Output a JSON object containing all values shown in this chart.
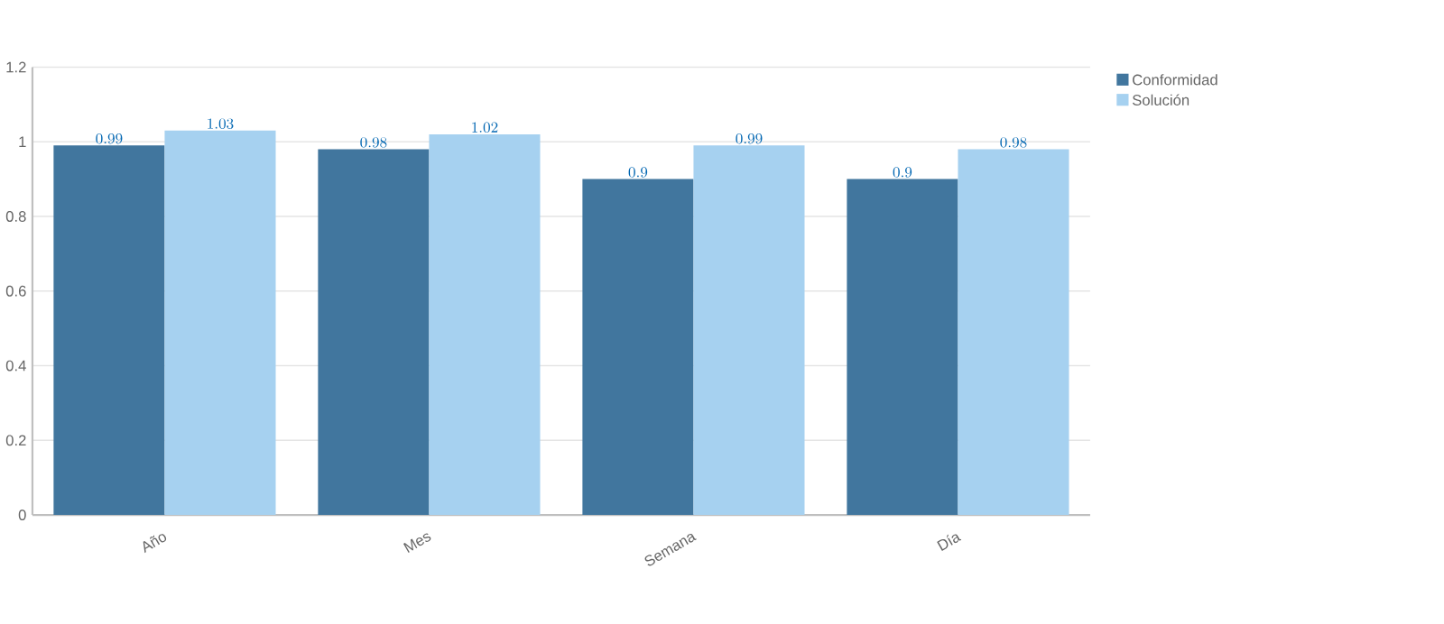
{
  "chart_data": {
    "type": "bar",
    "categories": [
      "Año",
      "Mes",
      "Semana",
      "Día"
    ],
    "series": [
      {
        "name": "Conformidad",
        "color": "#41769e",
        "values": [
          0.99,
          0.98,
          0.9,
          0.9
        ]
      },
      {
        "name": "Solución",
        "color": "#a6d1f0",
        "values": [
          1.03,
          1.02,
          0.99,
          0.98
        ]
      }
    ],
    "ylim": [
      0,
      1.2
    ],
    "yticks": [
      0,
      0.2,
      0.4,
      0.6,
      0.8,
      1,
      1.2
    ],
    "grid": "y",
    "legend": "top right",
    "data_labels": true
  }
}
